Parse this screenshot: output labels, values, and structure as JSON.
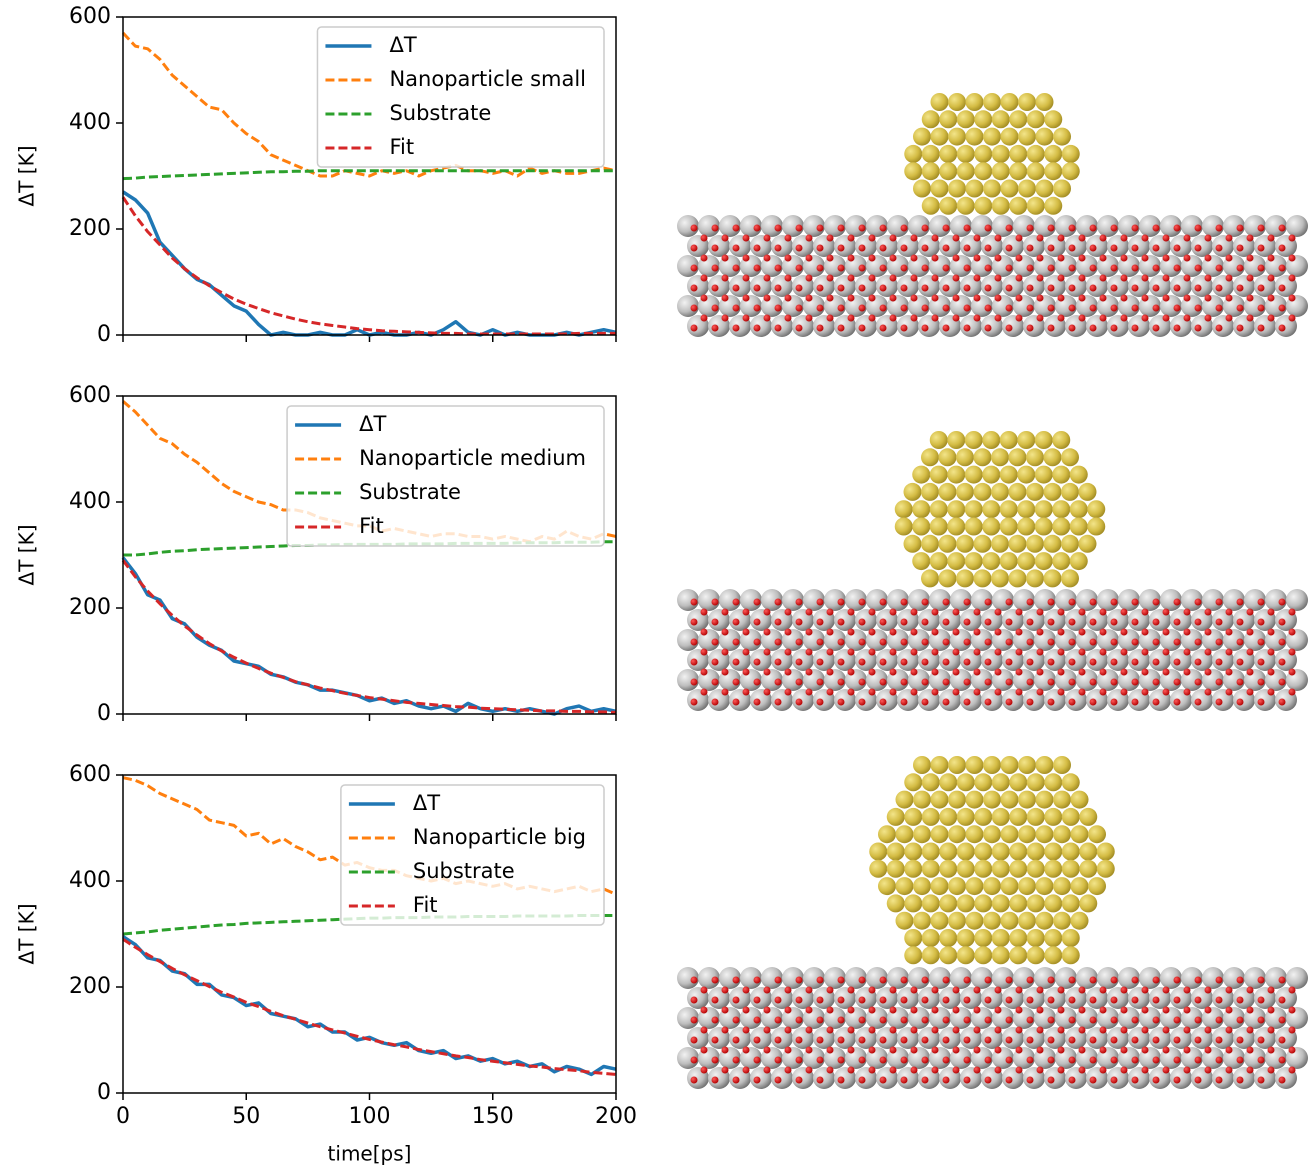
{
  "chart_data": [
    {
      "type": "line",
      "ylabel": "ΔT [K]",
      "ylim": [
        0,
        600
      ],
      "yticks": [
        0,
        200,
        400,
        600
      ],
      "xlim": [
        0,
        200
      ],
      "legend": "upper right",
      "x": [
        0,
        5,
        10,
        15,
        20,
        25,
        30,
        35,
        40,
        45,
        50,
        55,
        60,
        65,
        70,
        75,
        80,
        85,
        90,
        95,
        100,
        105,
        110,
        115,
        120,
        125,
        130,
        135,
        140,
        145,
        150,
        155,
        160,
        165,
        170,
        175,
        180,
        185,
        190,
        195,
        200
      ],
      "series": [
        {
          "name": "ΔT",
          "color": "#1f77b4",
          "style": "solid",
          "values": [
            270,
            255,
            230,
            175,
            150,
            125,
            105,
            95,
            75,
            55,
            45,
            20,
            0,
            5,
            0,
            0,
            5,
            0,
            0,
            10,
            0,
            5,
            0,
            0,
            5,
            0,
            10,
            25,
            5,
            0,
            10,
            0,
            5,
            0,
            0,
            0,
            5,
            0,
            5,
            10,
            5
          ]
        },
        {
          "name": "Nanoparticle small",
          "color": "#ff7f0e",
          "style": "dashed",
          "values": [
            570,
            545,
            540,
            520,
            490,
            470,
            450,
            430,
            425,
            400,
            380,
            365,
            340,
            330,
            320,
            310,
            300,
            300,
            310,
            305,
            300,
            310,
            305,
            310,
            300,
            310,
            315,
            320,
            310,
            310,
            305,
            310,
            300,
            315,
            305,
            310,
            305,
            305,
            310,
            315,
            310
          ]
        },
        {
          "name": "Substrate",
          "color": "#2ca02c",
          "style": "dashed",
          "values": [
            295,
            296,
            298,
            299,
            300,
            301,
            302,
            303,
            304,
            305,
            306,
            307,
            308,
            308,
            309,
            309,
            310,
            310,
            310,
            310,
            310,
            310,
            310,
            310,
            310,
            310,
            310,
            310,
            310,
            310,
            310,
            310,
            310,
            310,
            310,
            310,
            310,
            310,
            310,
            310,
            310
          ]
        },
        {
          "name": "Fit",
          "color": "#d62728",
          "style": "dashed",
          "values": [
            260,
            225,
            195,
            170,
            145,
            125,
            108,
            93,
            80,
            68,
            58,
            50,
            42,
            36,
            30,
            25,
            21,
            18,
            15,
            12,
            10,
            8,
            7,
            6,
            5,
            4,
            3,
            3,
            2,
            2,
            2,
            2,
            2,
            2,
            2,
            2,
            2,
            3,
            3,
            3,
            3
          ]
        }
      ]
    },
    {
      "type": "line",
      "ylabel": "ΔT [K]",
      "ylim": [
        0,
        600
      ],
      "yticks": [
        0,
        200,
        400,
        600
      ],
      "xlim": [
        0,
        200
      ],
      "legend": "upper right",
      "x": [
        0,
        5,
        10,
        15,
        20,
        25,
        30,
        35,
        40,
        45,
        50,
        55,
        60,
        65,
        70,
        75,
        80,
        85,
        90,
        95,
        100,
        105,
        110,
        115,
        120,
        125,
        130,
        135,
        140,
        145,
        150,
        155,
        160,
        165,
        170,
        175,
        180,
        185,
        190,
        195,
        200
      ],
      "series": [
        {
          "name": "ΔT",
          "color": "#1f77b4",
          "style": "solid",
          "values": [
            295,
            265,
            225,
            215,
            180,
            170,
            145,
            130,
            120,
            100,
            95,
            90,
            75,
            70,
            60,
            55,
            45,
            45,
            40,
            35,
            25,
            30,
            20,
            25,
            15,
            10,
            15,
            5,
            20,
            10,
            5,
            10,
            5,
            10,
            5,
            0,
            10,
            15,
            5,
            10,
            5
          ]
        },
        {
          "name": "Nanoparticle medium",
          "color": "#ff7f0e",
          "style": "dashed",
          "values": [
            590,
            570,
            545,
            520,
            510,
            490,
            475,
            455,
            435,
            420,
            410,
            400,
            395,
            385,
            385,
            380,
            370,
            365,
            360,
            355,
            355,
            345,
            350,
            345,
            340,
            335,
            340,
            340,
            335,
            335,
            330,
            335,
            330,
            325,
            335,
            330,
            345,
            335,
            330,
            340,
            335
          ]
        },
        {
          "name": "Substrate",
          "color": "#2ca02c",
          "style": "dashed",
          "values": [
            300,
            300,
            302,
            305,
            307,
            308,
            310,
            311,
            312,
            313,
            314,
            315,
            316,
            317,
            318,
            318,
            319,
            319,
            320,
            320,
            320,
            320,
            320,
            321,
            321,
            321,
            321,
            322,
            322,
            322,
            322,
            322,
            323,
            323,
            323,
            323,
            324,
            324,
            324,
            325,
            325
          ]
        },
        {
          "name": "Fit",
          "color": "#d62728",
          "style": "dashed",
          "values": [
            290,
            259,
            232,
            208,
            186,
            166,
            149,
            133,
            119,
            107,
            96,
            86,
            77,
            69,
            61,
            55,
            49,
            44,
            39,
            35,
            31,
            28,
            25,
            22,
            20,
            18,
            16,
            14,
            13,
            11,
            10,
            9,
            8,
            7,
            6,
            6,
            5,
            5,
            4,
            4,
            3
          ]
        }
      ]
    },
    {
      "type": "line",
      "ylabel": "ΔT [K]",
      "xlabel": "time[ps]",
      "ylim": [
        0,
        600
      ],
      "yticks": [
        0,
        200,
        400,
        600
      ],
      "xlim": [
        0,
        200
      ],
      "xticks": [
        0,
        50,
        100,
        150,
        200
      ],
      "legend": "upper right",
      "x": [
        0,
        5,
        10,
        15,
        20,
        25,
        30,
        35,
        40,
        45,
        50,
        55,
        60,
        65,
        70,
        75,
        80,
        85,
        90,
        95,
        100,
        105,
        110,
        115,
        120,
        125,
        130,
        135,
        140,
        145,
        150,
        155,
        160,
        165,
        170,
        175,
        180,
        185,
        190,
        195,
        200
      ],
      "series": [
        {
          "name": "ΔT",
          "color": "#1f77b4",
          "style": "solid",
          "values": [
            295,
            280,
            255,
            250,
            230,
            225,
            205,
            205,
            185,
            180,
            165,
            170,
            150,
            145,
            140,
            125,
            130,
            115,
            115,
            100,
            105,
            95,
            90,
            95,
            80,
            75,
            80,
            65,
            70,
            60,
            65,
            55,
            60,
            50,
            55,
            40,
            50,
            45,
            35,
            50,
            45
          ]
        },
        {
          "name": "Nanoparticle big",
          "color": "#ff7f0e",
          "style": "dashed",
          "values": [
            595,
            590,
            580,
            565,
            555,
            545,
            535,
            515,
            510,
            505,
            485,
            490,
            470,
            480,
            465,
            455,
            440,
            445,
            430,
            435,
            425,
            420,
            420,
            410,
            405,
            400,
            405,
            395,
            400,
            395,
            390,
            395,
            385,
            390,
            385,
            380,
            385,
            390,
            380,
            385,
            375
          ]
        },
        {
          "name": "Substrate",
          "color": "#2ca02c",
          "style": "dashed",
          "values": [
            300,
            302,
            304,
            307,
            309,
            311,
            313,
            315,
            317,
            318,
            320,
            321,
            322,
            323,
            324,
            325,
            326,
            327,
            328,
            329,
            330,
            330,
            331,
            331,
            331,
            332,
            332,
            332,
            333,
            333,
            333,
            333,
            334,
            334,
            334,
            334,
            334,
            335,
            335,
            335,
            335
          ]
        },
        {
          "name": "Fit",
          "color": "#d62728",
          "style": "dashed",
          "values": [
            290,
            275,
            261,
            248,
            235,
            223,
            212,
            201,
            190,
            181,
            171,
            163,
            154,
            146,
            139,
            132,
            125,
            119,
            113,
            107,
            101,
            96,
            91,
            87,
            82,
            78,
            74,
            70,
            67,
            63,
            60,
            57,
            54,
            51,
            49,
            46,
            44,
            42,
            39,
            37,
            35
          ]
        }
      ]
    }
  ]
}
